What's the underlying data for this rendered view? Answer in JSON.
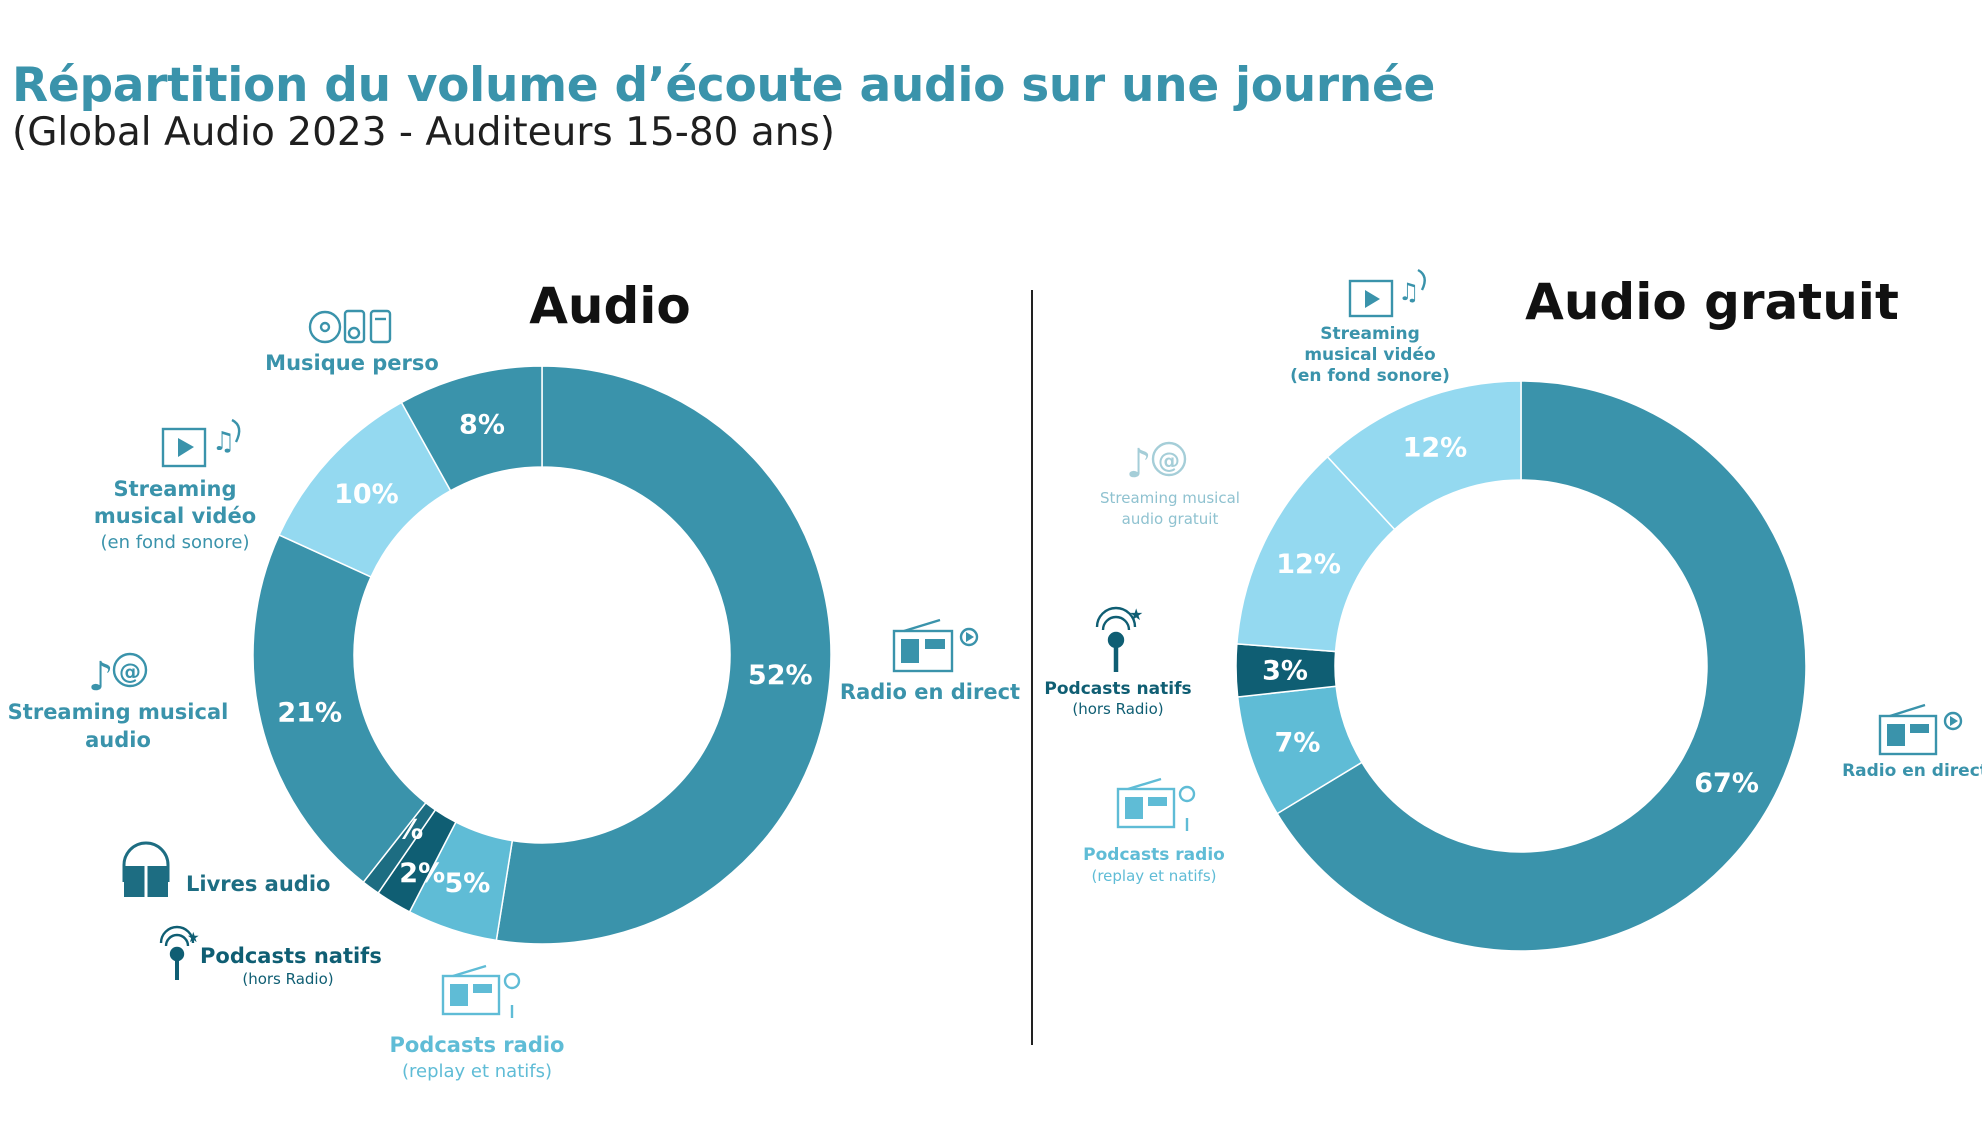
{
  "title": "Répartition du volume d’écoute audio sur une journée",
  "subtitle": "(Global Audio 2023 - Auditeurs 15-80 ans)",
  "colors": {
    "title": "#3a93ab",
    "radio_en_direct": "#3a93ab",
    "streaming_audio": "#3a93ab",
    "musique_perso": "#3a93ab",
    "streaming_video": "#94d9f0",
    "podcasts_radio": "#5fbcd6",
    "podcasts_natifs": "#0f5e73",
    "livres_audio": "#1d6d82"
  },
  "chart_data": [
    {
      "type": "donut",
      "title": "Audio",
      "series": [
        {
          "name": "Radio en direct",
          "value": 52
        },
        {
          "name": "Podcasts radio",
          "value": 5
        },
        {
          "name": "Podcasts natifs",
          "value": 2
        },
        {
          "name": "Livres audio",
          "value": 1
        },
        {
          "name": "Streaming musical audio",
          "value": 21
        },
        {
          "name": "Streaming musical vidéo",
          "value": 10
        },
        {
          "name": "Musique perso",
          "value": 8
        }
      ],
      "value_labels": [
        "52%",
        "5%",
        "2%",
        "1%",
        "21%",
        "10%",
        "8%"
      ]
    },
    {
      "type": "donut",
      "title": "Audio gratuit",
      "series": [
        {
          "name": "Radio en direct",
          "value": 67
        },
        {
          "name": "Podcasts radio",
          "value": 7
        },
        {
          "name": "Podcasts natifs",
          "value": 3
        },
        {
          "name": "Streaming musical audio gratuit",
          "value": 12
        },
        {
          "name": "Streaming musical vidéo",
          "value": 12
        }
      ],
      "value_labels": [
        "67%",
        "7%",
        "3%",
        "12%",
        "12%"
      ]
    }
  ],
  "labels": {
    "audio": {
      "musique_perso": "Musique perso",
      "streaming_video_1": "Streaming",
      "streaming_video_2": "musical vidéo",
      "streaming_video_note": "(en fond sonore)",
      "streaming_audio_1": "Streaming musical",
      "streaming_audio_2": "audio",
      "livres_audio": "Livres audio",
      "podcasts_natifs": "Podcasts natifs",
      "podcasts_natifs_note": "(hors Radio)",
      "podcasts_radio": "Podcasts radio",
      "podcasts_radio_note": "(replay et natifs)",
      "radio_en_direct": "Radio en direct"
    },
    "gratuit": {
      "streaming_video_1": "Streaming",
      "streaming_video_2": "musical vidéo",
      "streaming_video_note": "(en fond sonore)",
      "streaming_audio_1": "Streaming musical",
      "streaming_audio_2": "audio gratuit",
      "podcasts_natifs": "Podcasts natifs",
      "podcasts_natifs_note": "(hors Radio)",
      "podcasts_radio": "Podcasts radio",
      "podcasts_radio_note": "(replay et natifs)",
      "radio_en_direct": "Radio en direct"
    }
  }
}
